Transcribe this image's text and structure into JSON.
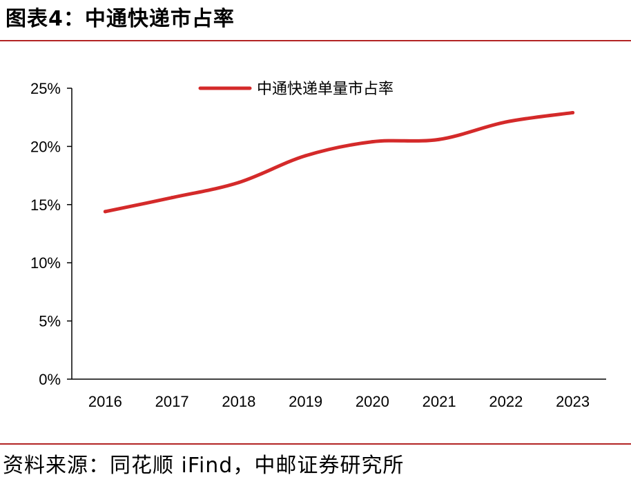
{
  "header": {
    "title": "图表4：中通快递市占率"
  },
  "source": {
    "text": "资料来源：同花顺 iFind，中邮证券研究所"
  },
  "chart_data": {
    "type": "line",
    "x": [
      "2016",
      "2017",
      "2018",
      "2019",
      "2020",
      "2021",
      "2022",
      "2023"
    ],
    "series": [
      {
        "name": "中通快递单量市占率",
        "values": [
          14.4,
          15.6,
          16.9,
          19.2,
          20.4,
          20.6,
          22.1,
          22.9
        ],
        "color": "#d42a2a"
      }
    ],
    "ylim": [
      0,
      25
    ],
    "yticks": [
      0,
      5,
      10,
      15,
      20,
      25
    ],
    "ytick_labels": [
      "0%",
      "5%",
      "10%",
      "15%",
      "20%",
      "25%"
    ],
    "grid": false,
    "legend": "top-center"
  }
}
